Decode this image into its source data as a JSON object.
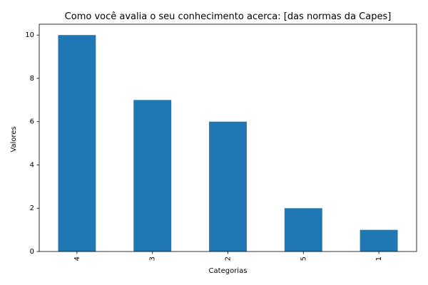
{
  "chart_data": {
    "type": "bar",
    "title": "Como você avalia o seu conhecimento acerca: [das normas da Capes]",
    "xlabel": "Categorias",
    "ylabel": "Valores",
    "categories": [
      "4",
      "3",
      "2",
      "5",
      "1"
    ],
    "values": [
      10,
      7,
      6,
      2,
      1
    ],
    "ylim": [
      0,
      10.5
    ],
    "yticks": [
      0,
      2,
      4,
      6,
      8,
      10
    ],
    "bar_color": "#1f77b4",
    "grid": false,
    "legend": "none"
  }
}
